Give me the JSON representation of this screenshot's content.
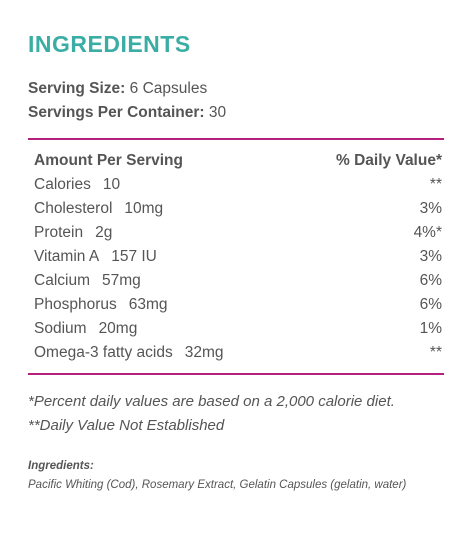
{
  "title": "INGREDIENTS",
  "serving": {
    "size_label": "Serving Size:",
    "size_value": "6 Capsules",
    "per_container_label": "Servings Per Container:",
    "per_container_value": "30"
  },
  "facts": {
    "header_left": "Amount Per Serving",
    "header_right": "% Daily Value*",
    "rows": [
      {
        "name": "Calories",
        "amount": "10",
        "dv": "**"
      },
      {
        "name": "Cholesterol",
        "amount": "10mg",
        "dv": "3%"
      },
      {
        "name": "Protein",
        "amount": "2g",
        "dv": "4%*"
      },
      {
        "name": "Vitamin A",
        "amount": "157 IU",
        "dv": "3%"
      },
      {
        "name": "Calcium",
        "amount": "57mg",
        "dv": "6%"
      },
      {
        "name": "Phosphorus",
        "amount": "63mg",
        "dv": "6%"
      },
      {
        "name": "Sodium",
        "amount": "20mg",
        "dv": "1%"
      },
      {
        "name": "Omega-3 fatty acids",
        "amount": "32mg",
        "dv": "**"
      }
    ]
  },
  "notes": {
    "percent_note": "*Percent daily values are based on a 2,000 calorie diet.",
    "dv_note": "**Daily Value Not Established"
  },
  "ingredients": {
    "label": "Ingredients:",
    "text": "Pacific Whiting (Cod), Rosemary Extract, Gelatin Capsules (gelatin, water)"
  },
  "colors": {
    "title": "#3aaea4",
    "rule": "#b5207e",
    "text": "#555555"
  }
}
